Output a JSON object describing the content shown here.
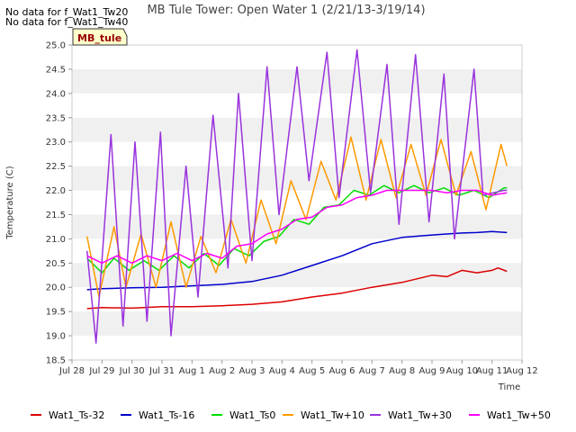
{
  "notes": [
    "No data for f_Wat1_Tw20",
    "No data for f_Wat1_Tw40"
  ],
  "chart_data": {
    "type": "line",
    "title": "MB Tule Tower: Open Water 1 (2/21/13-3/19/14)",
    "xlabel": "Time",
    "ylabel": "Temperature (C)",
    "station_label": "MB_tule",
    "xlim": [
      0,
      15
    ],
    "ylim": [
      18.5,
      25.0
    ],
    "x_ticks": [
      {
        "x": 0,
        "label": "Jul 28"
      },
      {
        "x": 1,
        "label": "Jul 29"
      },
      {
        "x": 2,
        "label": "Jul 30"
      },
      {
        "x": 3,
        "label": "Jul 31"
      },
      {
        "x": 4,
        "label": "Aug 1"
      },
      {
        "x": 5,
        "label": "Aug 2"
      },
      {
        "x": 6,
        "label": "Aug 3"
      },
      {
        "x": 7,
        "label": "Aug 4"
      },
      {
        "x": 8,
        "label": "Aug 5"
      },
      {
        "x": 9,
        "label": "Aug 6"
      },
      {
        "x": 10,
        "label": "Aug 7"
      },
      {
        "x": 11,
        "label": "Aug 8"
      },
      {
        "x": 12,
        "label": "Aug 9"
      },
      {
        "x": 13,
        "label": "Aug 10"
      },
      {
        "x": 14,
        "label": "Aug 11"
      },
      {
        "x": 15,
        "label": "Aug 12"
      }
    ],
    "y_ticks": [
      "18.5",
      "19.0",
      "19.5",
      "20.0",
      "20.5",
      "21.0",
      "21.5",
      "22.0",
      "22.5",
      "23.0",
      "23.5",
      "24.0",
      "24.5",
      "25.0"
    ],
    "grid": "horizontal bands",
    "legend_position": "bottom",
    "series": [
      {
        "name": "Wat1_Ts-32",
        "color": "#dd0000",
        "x": [
          0.5,
          1,
          2,
          3,
          4,
          5,
          6,
          7,
          8,
          9,
          10,
          11,
          12,
          12.5,
          13,
          13.5,
          14,
          14.2,
          14.5
        ],
        "y": [
          19.56,
          19.58,
          19.57,
          19.6,
          19.6,
          19.62,
          19.65,
          19.7,
          19.8,
          19.88,
          20.0,
          20.1,
          20.25,
          20.22,
          20.35,
          20.3,
          20.35,
          20.4,
          20.33
        ]
      },
      {
        "name": "Wat1_Ts-16",
        "color": "#0000cc",
        "x": [
          0.5,
          1,
          2,
          3,
          4,
          5,
          6,
          7,
          8,
          9,
          10,
          11,
          12,
          13,
          13.5,
          14,
          14.5
        ],
        "y": [
          19.95,
          19.97,
          19.99,
          20.0,
          20.03,
          20.06,
          20.12,
          20.25,
          20.45,
          20.65,
          20.9,
          21.03,
          21.08,
          21.12,
          21.13,
          21.15,
          21.13
        ]
      },
      {
        "name": "Wat1_Ts0",
        "color": "#00dd00",
        "x": [
          0.5,
          1,
          1.4,
          1.9,
          2.4,
          2.9,
          3.4,
          3.9,
          4.4,
          4.9,
          5.4,
          5.9,
          6.4,
          6.9,
          7.4,
          7.9,
          8.4,
          8.9,
          9.4,
          9.9,
          10.4,
          10.9,
          11.4,
          11.9,
          12.4,
          12.9,
          13.4,
          13.9,
          14.4,
          14.5
        ],
        "y": [
          20.6,
          20.3,
          20.6,
          20.35,
          20.55,
          20.35,
          20.65,
          20.4,
          20.7,
          20.45,
          20.8,
          20.65,
          20.95,
          21.05,
          21.4,
          21.3,
          21.65,
          21.7,
          22.0,
          21.9,
          22.1,
          21.95,
          22.1,
          21.95,
          22.05,
          21.9,
          22.0,
          21.85,
          22.05,
          22.05
        ]
      },
      {
        "name": "Wat1_Tw+10",
        "color": "#ff9900",
        "x": [
          0.5,
          0.9,
          1.4,
          1.8,
          2.3,
          2.8,
          3.3,
          3.8,
          4.3,
          4.8,
          5.3,
          5.8,
          6.3,
          6.8,
          7.3,
          7.8,
          8.3,
          8.8,
          9.3,
          9.8,
          10.3,
          10.8,
          11.3,
          11.8,
          12.3,
          12.8,
          13.3,
          13.8,
          14.3,
          14.5
        ],
        "y": [
          21.05,
          19.8,
          21.25,
          20.0,
          21.1,
          20.0,
          21.35,
          20.0,
          21.05,
          20.3,
          21.4,
          20.5,
          21.8,
          20.9,
          22.2,
          21.4,
          22.6,
          21.8,
          23.1,
          21.8,
          23.05,
          21.85,
          22.95,
          21.9,
          23.05,
          21.9,
          22.8,
          21.6,
          22.95,
          22.5
        ]
      },
      {
        "name": "Wat1_Tw+30",
        "color": "#9933dd",
        "x": [
          0.5,
          0.8,
          1.3,
          1.7,
          2.1,
          2.5,
          2.95,
          3.3,
          3.8,
          4.2,
          4.7,
          5.2,
          5.55,
          6.0,
          6.5,
          6.9,
          7.5,
          7.9,
          8.5,
          8.9,
          9.5,
          9.95,
          10.5,
          10.9,
          11.45,
          11.9,
          12.4,
          12.75,
          13.4,
          13.7,
          14.4,
          14.5
        ],
        "y": [
          20.75,
          18.85,
          23.15,
          19.2,
          23.0,
          19.3,
          23.2,
          19.0,
          22.5,
          19.8,
          23.55,
          20.4,
          24.0,
          20.55,
          24.55,
          21.5,
          24.55,
          22.2,
          24.85,
          21.85,
          24.9,
          21.95,
          24.6,
          21.3,
          24.8,
          21.35,
          24.4,
          21.0,
          24.5,
          21.9,
          22.0,
          22.0
        ]
      },
      {
        "name": "Wat1_Tw+50",
        "color": "#ff00ff",
        "x": [
          0.5,
          1,
          1.5,
          2,
          2.5,
          3,
          3.5,
          4,
          4.5,
          5,
          5.5,
          6,
          6.5,
          7,
          7.5,
          8,
          8.5,
          9,
          9.5,
          10,
          10.5,
          11,
          11.5,
          12,
          12.5,
          13,
          13.5,
          14,
          14.5
        ],
        "y": [
          20.65,
          20.5,
          20.65,
          20.5,
          20.65,
          20.55,
          20.7,
          20.55,
          20.7,
          20.6,
          20.85,
          20.9,
          21.1,
          21.2,
          21.4,
          21.45,
          21.65,
          21.7,
          21.85,
          21.9,
          22.0,
          22.0,
          22.0,
          22.0,
          21.95,
          22.0,
          22.0,
          21.9,
          21.95
        ]
      }
    ]
  }
}
